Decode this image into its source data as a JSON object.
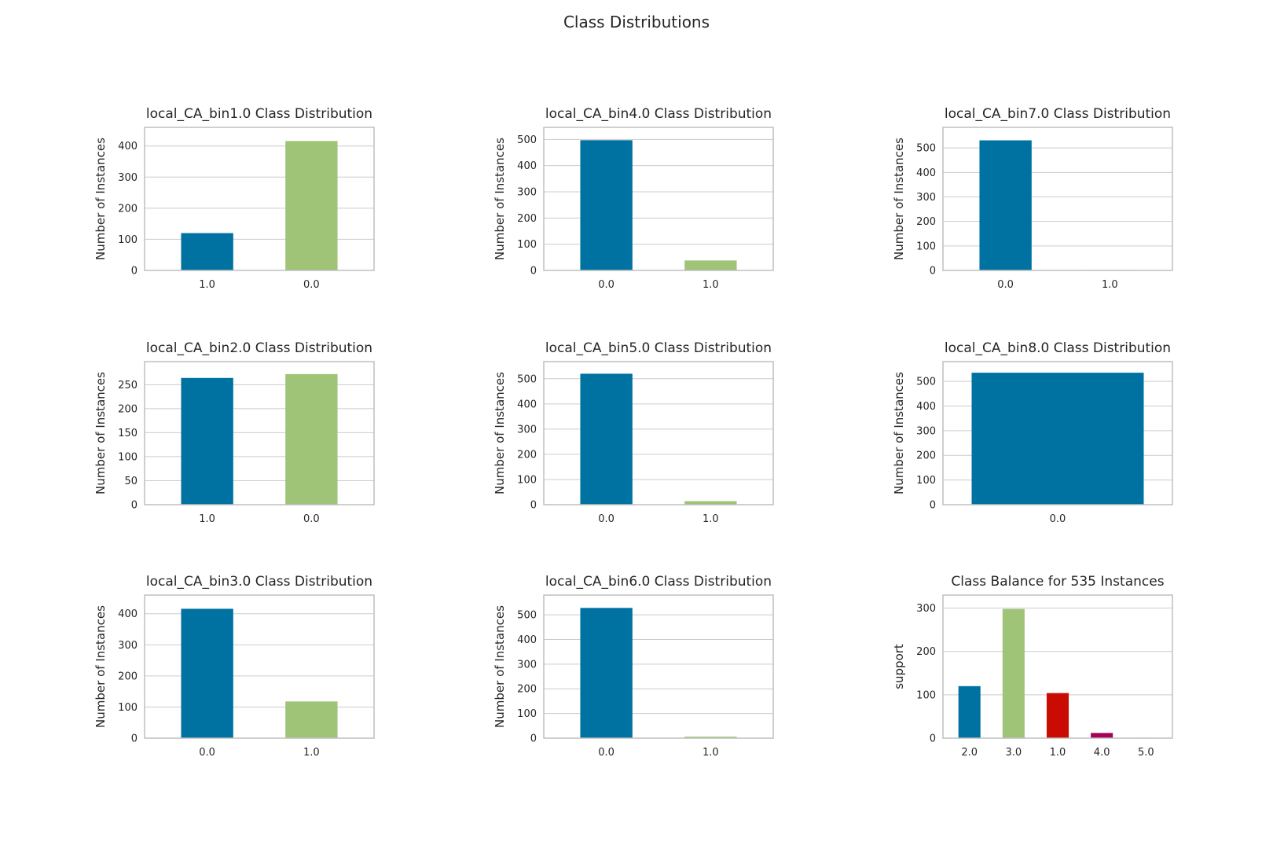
{
  "figure": {
    "title": "Class Distributions"
  },
  "palette": [
    "#0072a2",
    "#9fc377",
    "#ca0b03",
    "#a50258",
    "#d9a25a"
  ],
  "grid_color": "#cccccc",
  "frame_color": "#bfbfbf",
  "chart_data": [
    {
      "type": "bar",
      "title": "local_CA_bin1.0 Class Distribution",
      "ylabel": "Number of Instances",
      "categories": [
        "1.0",
        "0.0"
      ],
      "values": [
        120,
        416
      ],
      "ylim": [
        0,
        460
      ],
      "yticks": [
        0,
        100,
        200,
        300,
        400
      ]
    },
    {
      "type": "bar",
      "title": "local_CA_bin4.0 Class Distribution",
      "ylabel": "Number of Instances",
      "categories": [
        "0.0",
        "1.0"
      ],
      "values": [
        497,
        38
      ],
      "ylim": [
        0,
        546
      ],
      "yticks": [
        0,
        100,
        200,
        300,
        400,
        500
      ]
    },
    {
      "type": "bar",
      "title": "local_CA_bin7.0 Class Distribution",
      "ylabel": "Number of Instances",
      "categories": [
        "0.0",
        "1.0"
      ],
      "values": [
        531,
        2
      ],
      "ylim": [
        0,
        584
      ],
      "yticks": [
        0,
        100,
        200,
        300,
        400,
        500
      ]
    },
    {
      "type": "bar",
      "title": "local_CA_bin2.0 Class Distribution",
      "ylabel": "Number of Instances",
      "categories": [
        "1.0",
        "0.0"
      ],
      "values": [
        264,
        272
      ],
      "ylim": [
        0,
        298
      ],
      "yticks": [
        0,
        50,
        100,
        150,
        200,
        250
      ]
    },
    {
      "type": "bar",
      "title": "local_CA_bin5.0 Class Distribution",
      "ylabel": "Number of Instances",
      "categories": [
        "0.0",
        "1.0"
      ],
      "values": [
        520,
        14
      ],
      "ylim": [
        0,
        568
      ],
      "yticks": [
        0,
        100,
        200,
        300,
        400,
        500
      ]
    },
    {
      "type": "bar",
      "title": "local_CA_bin8.0 Class Distribution",
      "ylabel": "Number of Instances",
      "categories": [
        "0.0"
      ],
      "values": [
        535
      ],
      "ylim": [
        0,
        580
      ],
      "yticks": [
        0,
        100,
        200,
        300,
        400,
        500
      ],
      "bar_width": 0.9
    },
    {
      "type": "bar",
      "title": "local_CA_bin3.0 Class Distribution",
      "ylabel": "Number of Instances",
      "categories": [
        "0.0",
        "1.0"
      ],
      "values": [
        416,
        118
      ],
      "ylim": [
        0,
        460
      ],
      "yticks": [
        0,
        100,
        200,
        300,
        400
      ]
    },
    {
      "type": "bar",
      "title": "local_CA_bin6.0 Class Distribution",
      "ylabel": "Number of Instances",
      "categories": [
        "0.0",
        "1.0"
      ],
      "values": [
        528,
        6
      ],
      "ylim": [
        0,
        580
      ],
      "yticks": [
        0,
        100,
        200,
        300,
        400,
        500
      ]
    },
    {
      "type": "bar",
      "title": "Class Balance for 535 Instances",
      "ylabel": "support",
      "categories": [
        "2.0",
        "3.0",
        "1.0",
        "4.0",
        "5.0"
      ],
      "values": [
        120,
        298,
        104,
        12,
        1
      ],
      "ylim": [
        0,
        330
      ],
      "yticks": [
        0,
        100,
        200,
        300
      ]
    }
  ]
}
